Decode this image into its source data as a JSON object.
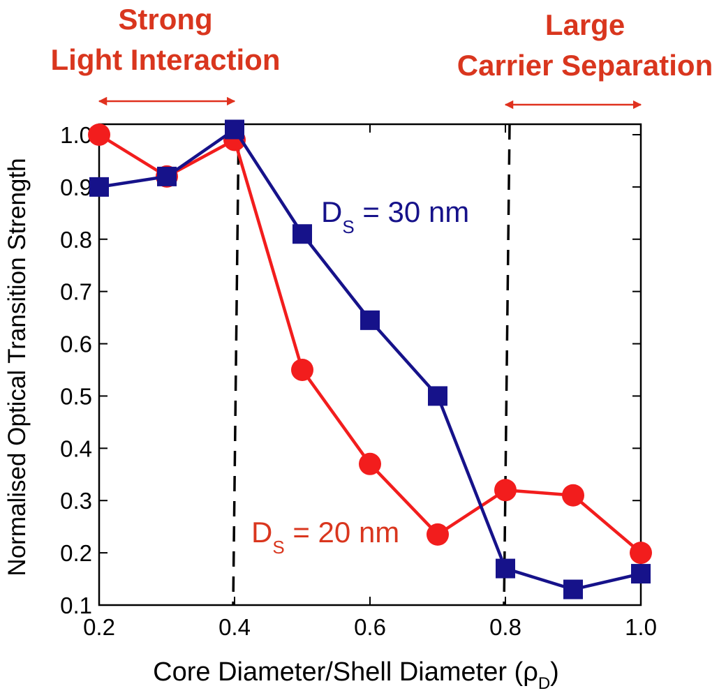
{
  "colors": {
    "series_30": "#16128a",
    "series_20": "#f21d1d",
    "annotation": "#d9361e",
    "arrow": "#e0311e",
    "axis": "#000000"
  },
  "annotations": {
    "left_line1": "Strong",
    "left_line2": "Light Interaction",
    "right_line1": "Large",
    "right_line2": "Carrier Separation"
  },
  "labels": {
    "ds30_main": "D",
    "ds30_sub": "S",
    "ds30_rest": " = 30 nm",
    "ds20_main": "D",
    "ds20_sub": "S",
    "ds20_rest": " = 20 nm",
    "xlabel_main": "Core Diameter/Shell Diameter (ρ",
    "xlabel_sub": "D",
    "xlabel_end": ")",
    "ylabel": "Normalised Optical Transition Strength"
  },
  "chart_data": {
    "type": "line",
    "title": "",
    "xlabel": "Core Diameter/Shell Diameter (ρD)",
    "ylabel": "Normalised Optical Transition Strength",
    "xlim": [
      0.2,
      1.0
    ],
    "ylim": [
      0.1,
      1.02
    ],
    "xticks": [
      0.2,
      0.4,
      0.6,
      0.8,
      1.0
    ],
    "xtick_labels": [
      "0.2",
      "0.4",
      "0.6",
      "0.8",
      "1.0"
    ],
    "yticks": [
      0.1,
      0.2,
      0.3,
      0.4,
      0.5,
      0.6,
      0.7,
      0.8,
      0.9,
      1.0
    ],
    "ytick_labels": [
      "0.1",
      "0.2",
      "0.3",
      "0.4",
      "0.5",
      "0.6",
      "0.7",
      "0.8",
      "0.9",
      "1.0"
    ],
    "grid": false,
    "vlines": [
      0.4,
      0.8
    ],
    "ranges": [
      {
        "from": 0.2,
        "to": 0.4,
        "label": "Strong Light Interaction"
      },
      {
        "from": 0.8,
        "to": 1.0,
        "label": "Large Carrier Separation"
      }
    ],
    "series": [
      {
        "name": "DS = 30 nm",
        "marker": "square",
        "color": "#16128a",
        "x": [
          0.2,
          0.3,
          0.4,
          0.5,
          0.6,
          0.7,
          0.8,
          0.9,
          1.0
        ],
        "y": [
          0.9,
          0.92,
          1.01,
          0.81,
          0.645,
          0.5,
          0.17,
          0.13,
          0.16
        ]
      },
      {
        "name": "DS = 20 nm",
        "marker": "circle",
        "color": "#f21d1d",
        "x": [
          0.2,
          0.3,
          0.4,
          0.5,
          0.6,
          0.7,
          0.8,
          0.9,
          1.0
        ],
        "y": [
          1.0,
          0.92,
          0.99,
          0.55,
          0.37,
          0.235,
          0.32,
          0.31,
          0.2
        ]
      }
    ]
  }
}
